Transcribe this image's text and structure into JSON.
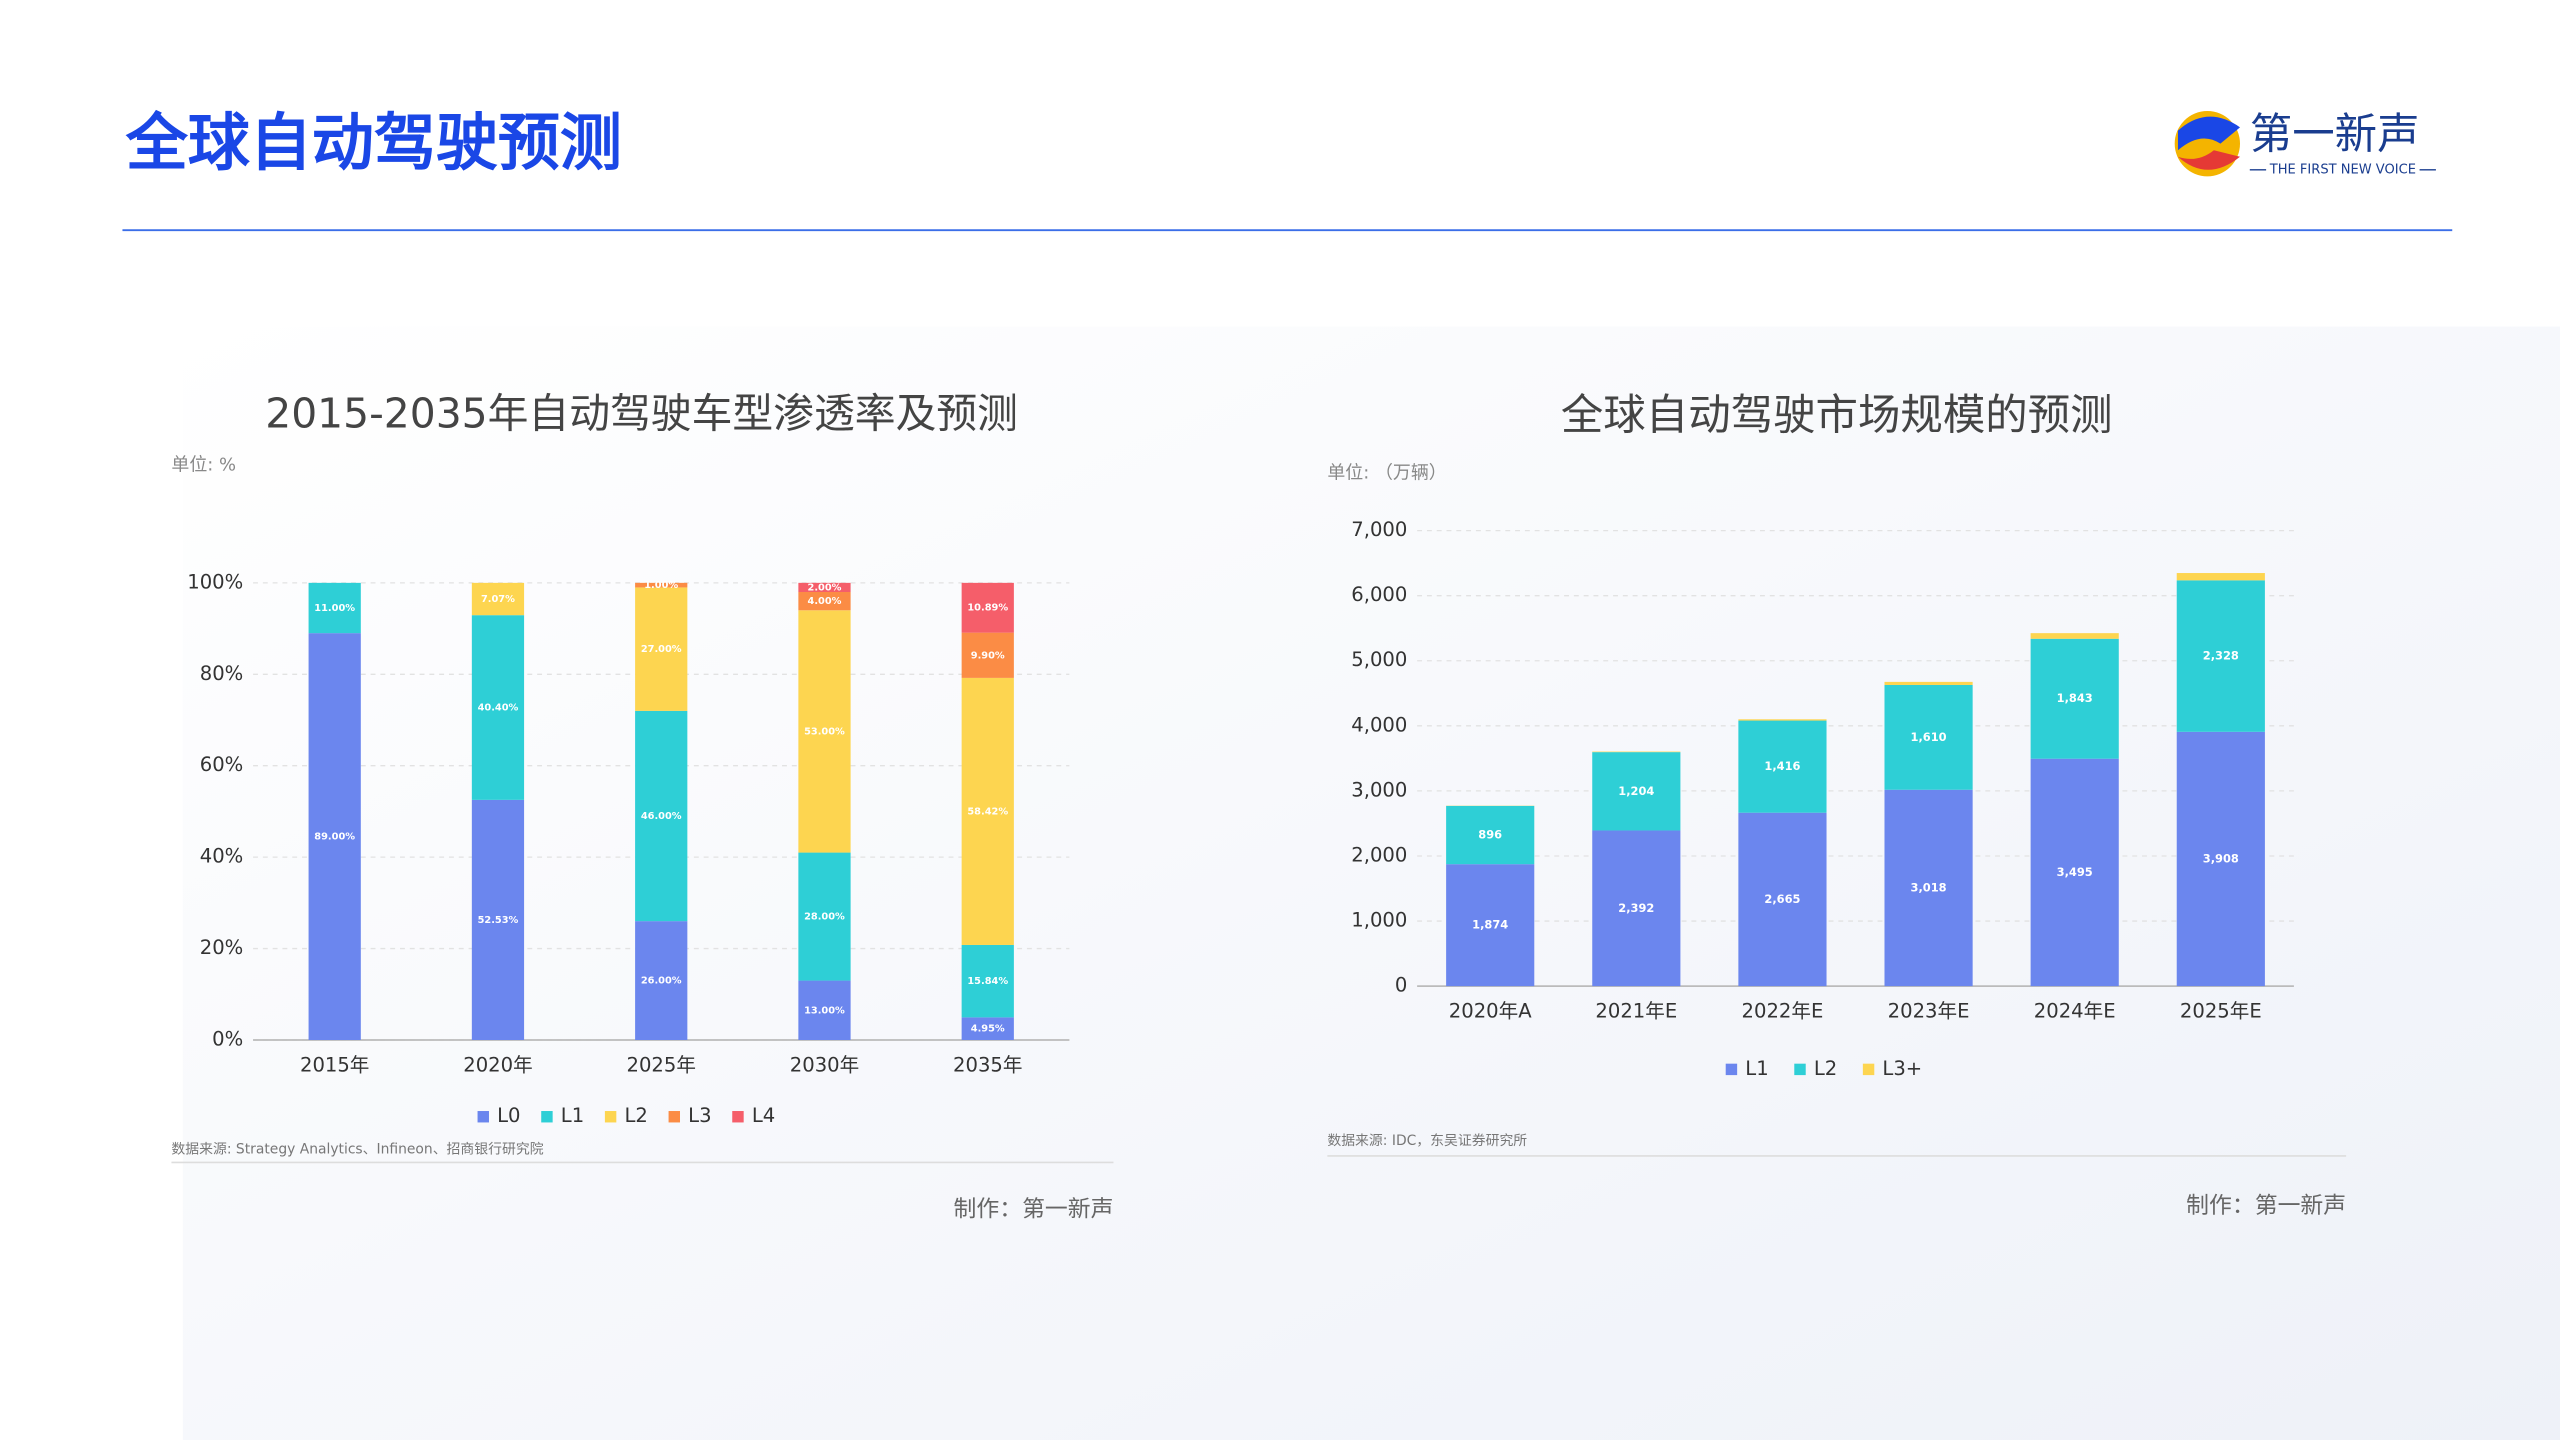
{
  "header": {
    "title": "全球自动驾驶预测",
    "logo_name": "第一新声",
    "logo_tagline": "THE FIRST NEW VOICE"
  },
  "chart_data": [
    {
      "type": "stacked_bar",
      "title": "2015-2035年自动驾驶车型渗透率及预测",
      "unit": "单位: %",
      "source": "数据来源: Strategy Analytics、Infineon、招商银行研究院",
      "credit": "制作：第一新声",
      "categories": [
        "2015年",
        "2020年",
        "2025年",
        "2030年",
        "2035年"
      ],
      "series": [
        {
          "name": "L0",
          "color": "#6b86ee",
          "values": [
            89,
            52.53,
            26,
            13,
            4.95
          ],
          "value_labels": [
            "89.00%",
            "52.53%",
            "26.00%",
            "13.00%",
            "4.95%"
          ]
        },
        {
          "name": "L1",
          "color": "#2ecfd6",
          "values": [
            11,
            40.4,
            46,
            28,
            15.84
          ],
          "value_labels": [
            "11.00%",
            "40.40%",
            "46.00%",
            "28.00%",
            "15.84%"
          ]
        },
        {
          "name": "L2",
          "color": "#fdd550",
          "values": [
            0,
            7.07,
            27,
            53,
            58.42
          ],
          "value_labels": [
            null,
            "7.07%",
            "27.00%",
            "53.00%",
            "58.42%"
          ]
        },
        {
          "name": "L3",
          "color": "#fb8c45",
          "values": [
            0,
            0,
            1,
            4,
            9.9
          ],
          "value_labels": [
            null,
            null,
            "1.00%",
            "4.00%",
            "9.90%"
          ]
        },
        {
          "name": "L4",
          "color": "#f55e6a",
          "values": [
            0,
            0,
            0,
            2,
            10.89
          ],
          "value_labels": [
            null,
            null,
            null,
            "2.00%",
            "10.89%"
          ]
        }
      ],
      "ylim": [
        0,
        100
      ],
      "yticks": [
        {
          "value": 0,
          "label": "0%"
        },
        {
          "value": 20,
          "label": "20%"
        },
        {
          "value": 40,
          "label": "40%"
        },
        {
          "value": 60,
          "label": "60%"
        },
        {
          "value": 80,
          "label": "80%"
        },
        {
          "value": 100,
          "label": "100%"
        }
      ],
      "grid": true,
      "legend": "bottom"
    },
    {
      "type": "stacked_bar",
      "title": "全球自动驾驶市场规模的预测",
      "unit": "单位: （万辆）",
      "source": "数据来源: IDC，东吴证券研究所",
      "credit": "制作：第一新声",
      "categories": [
        "2020年A",
        "2021年E",
        "2022年E",
        "2023年E",
        "2024年E",
        "2025年E"
      ],
      "series": [
        {
          "name": "L1",
          "color": "#6b86ee",
          "values": [
            1874,
            2392,
            2665,
            3018,
            3495,
            3908
          ],
          "value_labels": [
            "1,874",
            "2,392",
            "2,665",
            "3,018",
            "3,495",
            "3,908"
          ]
        },
        {
          "name": "L2",
          "color": "#2ecfd6",
          "values": [
            896,
            1204,
            1416,
            1610,
            1843,
            2328
          ],
          "value_labels": [
            "896",
            "1,204",
            "1,416",
            "1,610",
            "1,843",
            "2,328"
          ]
        },
        {
          "name": "L3+",
          "color": "#fdd550",
          "values": [
            3.3,
            8.4,
            19.4,
            47.4,
            86.3,
            112
          ]
        }
      ],
      "ylim": [
        0,
        7000
      ],
      "yticks": [
        0,
        {
          "value": 1000,
          "label": "1,000"
        },
        {
          "value": 2000,
          "label": "2,000"
        },
        {
          "value": 3000,
          "label": "3,000"
        },
        {
          "value": 4000,
          "label": "4,000"
        },
        {
          "value": 5000,
          "label": "5,000"
        },
        {
          "value": 6000,
          "label": "6,000"
        },
        {
          "value": 7000,
          "label": "7,000"
        }
      ],
      "grid": true,
      "legend": "bottom"
    }
  ]
}
